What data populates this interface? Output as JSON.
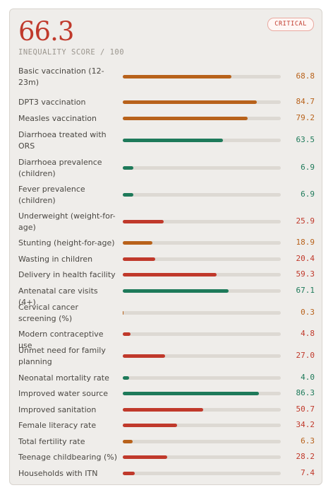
{
  "card": {
    "score": "66.3",
    "subtitle": "INEQUALITY SCORE / 100",
    "badge": "CRITICAL"
  },
  "colors": {
    "score": "#c0392b",
    "badge": "#c0392b",
    "badge_border": "#e9a9a0",
    "high": "#1e7a5a",
    "medium": "#b8621b",
    "low": "#c0392b",
    "track": "#ddd9d3"
  },
  "chart_data": {
    "type": "bar",
    "orientation": "horizontal",
    "xlim": [
      0,
      100
    ],
    "categories": [
      "Basic vaccination (12-23m)",
      "DPT3 vaccination",
      "Measles vaccination",
      "Diarrhoea treated with ORS",
      "Diarrhoea prevalence (children)",
      "Fever prevalence (children)",
      "Underweight (weight-for-age)",
      "Stunting (height-for-age)",
      "Wasting in children",
      "Delivery in health facility",
      "Antenatal care visits (4+)",
      "Cervical cancer screening (%)",
      "Modern contraceptive use",
      "Unmet need for family planning",
      "Neonatal mortality rate",
      "Improved water source",
      "Improved sanitation",
      "Female literacy rate",
      "Total fertility rate",
      "Teenage childbearing (%)",
      "Households with ITN"
    ],
    "values": [
      68.8,
      84.7,
      79.2,
      63.5,
      6.9,
      6.9,
      25.9,
      18.9,
      20.4,
      59.3,
      67.1,
      0.3,
      4.8,
      27.0,
      4.0,
      86.3,
      50.7,
      34.2,
      6.3,
      28.2,
      7.4
    ],
    "labels": [
      "68.8",
      "84.7",
      "79.2",
      "63.5",
      "6.9",
      "6.9",
      "25.9",
      "18.9",
      "20.4",
      "59.3",
      "67.1",
      "0.3",
      "4.8",
      "27.0",
      "4.0",
      "86.3",
      "50.7",
      "34.2",
      "6.3",
      "28.2",
      "7.4"
    ],
    "bar_colors": [
      "medium",
      "medium",
      "medium",
      "high",
      "high",
      "high",
      "low",
      "medium",
      "low",
      "low",
      "high",
      "medium",
      "low",
      "low",
      "high",
      "high",
      "low",
      "low",
      "medium",
      "low",
      "low"
    ]
  }
}
